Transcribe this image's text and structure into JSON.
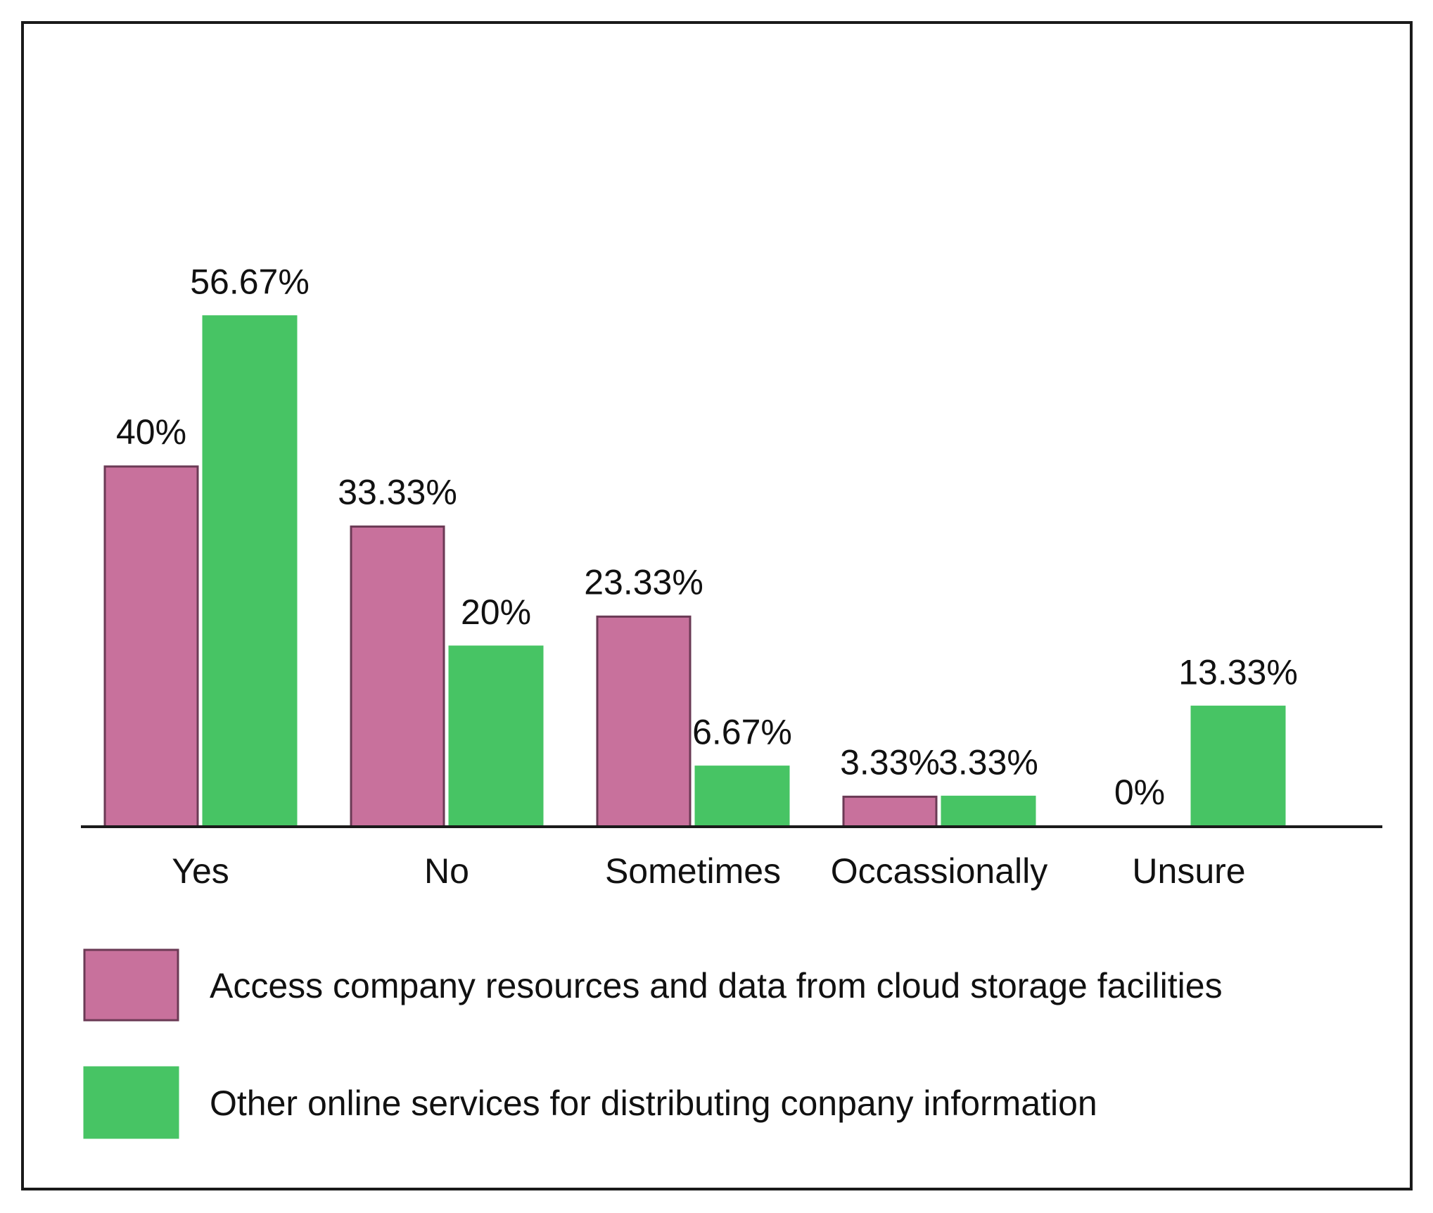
{
  "chart_data": {
    "type": "bar",
    "title": "",
    "xlabel": "",
    "ylabel": "",
    "ylim": [
      0,
      60
    ],
    "grid": false,
    "legend_position": "bottom-left",
    "categories": [
      "Yes",
      "No",
      "Sometimes",
      "Occassionally",
      "Unsure"
    ],
    "series": [
      {
        "name": "Access company resources and data from cloud storage facilities",
        "color": "#c8719c",
        "values": [
          40,
          33.33,
          23.33,
          3.33,
          0
        ],
        "labels": [
          "40%",
          "33.33%",
          "23.33%",
          "3.33%",
          "0%"
        ]
      },
      {
        "name": "Other online services for distributing conpany information",
        "color": "#47c464",
        "values": [
          56.67,
          20,
          6.67,
          3.33,
          13.33
        ],
        "labels": [
          "56.67%",
          "20%",
          "6.67%",
          "3.33%",
          "13.33%"
        ]
      }
    ]
  }
}
